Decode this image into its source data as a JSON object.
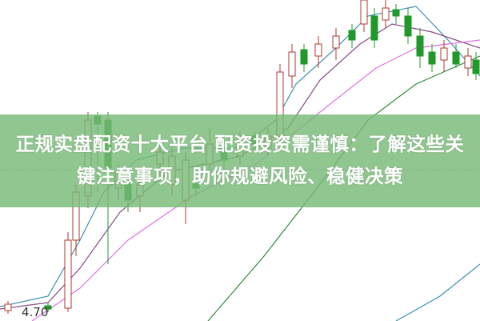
{
  "headline": "正规实盘配资十大平台 配资投资需谨慎：了解这些关键注意事项，助你规避风险、稳健决策",
  "price_label": "4.70",
  "colors": {
    "up": "#b03a2e",
    "down": "#1f9a2a",
    "band": "#8fc58f",
    "ma_blue": "#3a8fb0",
    "ma_purple": "#8a4a8a",
    "ma_pink": "#e070e0",
    "ma_green": "#2f8a3a"
  }
}
